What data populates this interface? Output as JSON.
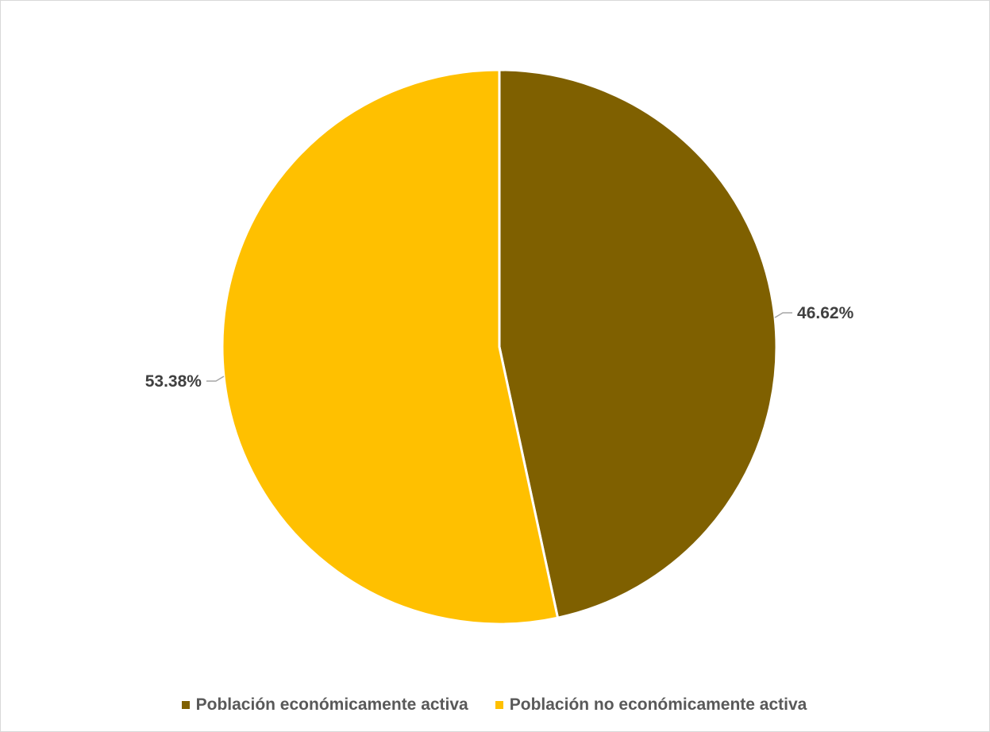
{
  "chart_data": {
    "type": "pie",
    "title": "",
    "start_angle_deg": 0,
    "direction": "clockwise",
    "legend_position": "bottom",
    "slices": [
      {
        "name": "Población económicamente activa",
        "value": 46.62,
        "label": "46.62%",
        "color": "#7f6000"
      },
      {
        "name": "Población no económicamente activa",
        "value": 53.38,
        "label": "53.38%",
        "color": "#ffc000"
      }
    ]
  }
}
